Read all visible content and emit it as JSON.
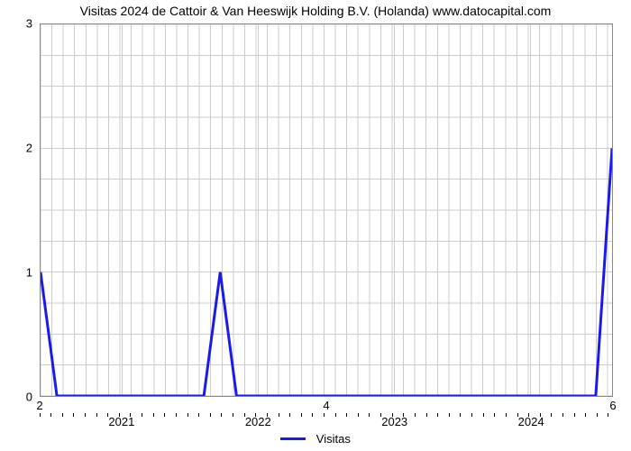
{
  "chart": {
    "type": "line",
    "title": "Visitas 2024 de Cattoir & Van Heeswijk Holding B.V. (Holanda) www.datocapital.com",
    "title_fontsize": 14,
    "title_color": "#000000",
    "background_color": "#ffffff",
    "plot_border_color": "#888888",
    "grid_color": "#cccccc",
    "grid_on": true,
    "aspect_w": 636,
    "aspect_h": 414,
    "y_axis": {
      "lim": [
        0,
        3
      ],
      "ticks": [
        0,
        1,
        2,
        3
      ],
      "tick_fontsize": 13,
      "label_color": "#000000"
    },
    "x_axis_top": {
      "lim": [
        2,
        6
      ],
      "ticks": [
        2,
        4,
        6
      ],
      "tick_fontsize": 13,
      "label_color": "#000000"
    },
    "x_axis_bottom": {
      "lim": [
        2020.4,
        2024.6
      ],
      "major_ticks": [
        2021,
        2022,
        2023,
        2024
      ],
      "tick_fontsize": 13,
      "label_color": "#000000",
      "minor_ticks_per_major": 12
    },
    "legend": {
      "label": "Visitas",
      "color": "#1a1aeb",
      "fontsize": 13,
      "position": "bottom-center"
    },
    "series": {
      "color": "#1a1aeb",
      "line_width": 3,
      "x": [
        2020.4,
        2020.52,
        2021.6,
        2021.72,
        2021.84,
        2024.48,
        2024.6
      ],
      "y": [
        1.0,
        0.0,
        0.0,
        1.0,
        0.0,
        0.0,
        2.0
      ]
    }
  }
}
